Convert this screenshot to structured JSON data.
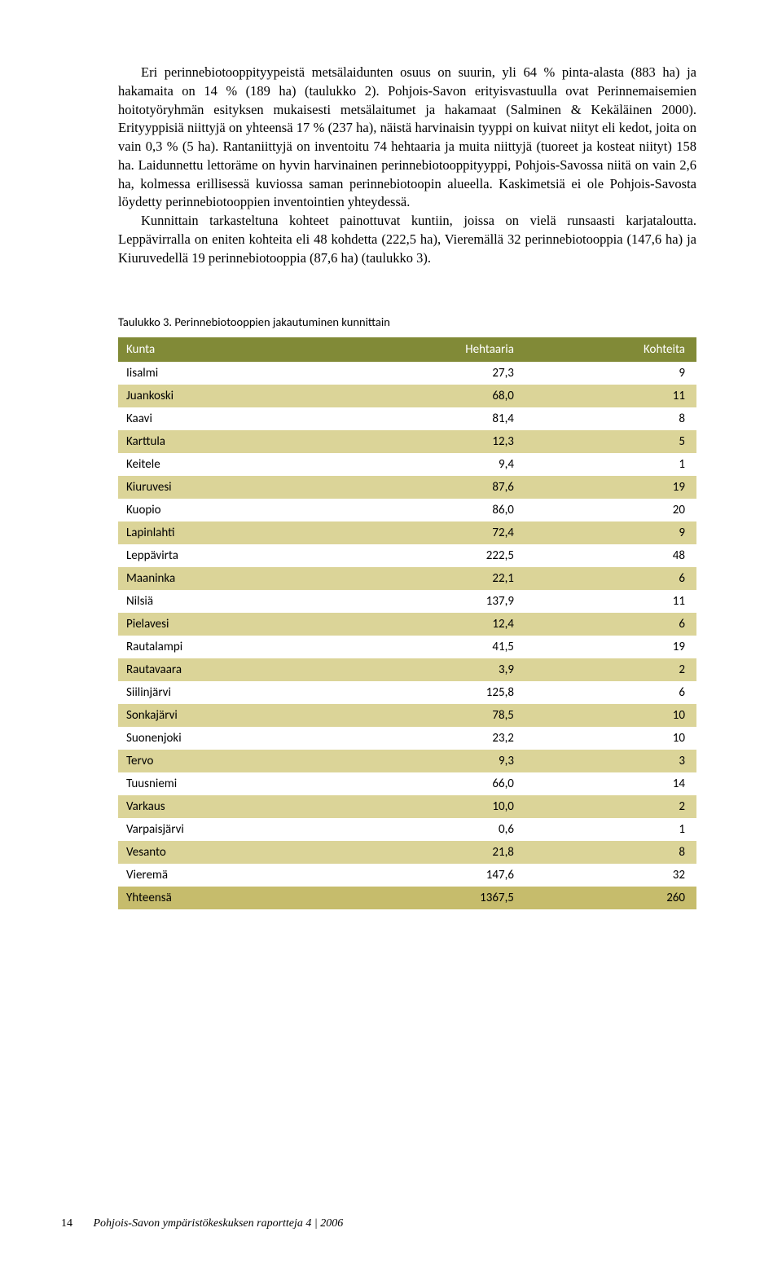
{
  "paragraphs": {
    "p1": "Eri perinnebiotooppityypeistä metsälaidunten osuus on suurin, yli 64 % pinta-alasta (883 ha) ja hakamaita on 14 % (189 ha) (taulukko 2). Pohjois-Savon erityisvastuulla ovat Perinnemaisemien hoitotyöryhmän esityksen mukaisesti metsälaitumet ja hakamaat (Salminen & Kekäläinen 2000). Erityyppisiä niittyjä on yhteensä 17 % (237 ha), näistä harvinaisin tyyppi on kuivat niityt eli kedot, joita on vain 0,3 % (5 ha). Rantaniittyjä on inventoitu 74 hehtaaria ja muita niittyjä (tuoreet ja kosteat niityt) 158 ha. Laidunnettu lettoräme on hyvin harvinainen perinnebiotooppityyppi, Pohjois-Savossa niitä on vain 2,6 ha, kolmessa erillisessä kuviossa saman perinnebiotoopin alueella. Kaskimetsiä ei ole Pohjois-Savosta löydetty perinnebiotooppien inventointien yhteydessä.",
    "p2": "Kunnittain tarkasteltuna kohteet painottuvat kuntiin, joissa on vielä runsaasti karjataloutta. Leppävirralla on eniten kohteita eli 48 kohdetta (222,5 ha), Vieremällä 32 perinnebiotooppia (147,6 ha) ja Kiuruvedellä 19 perinnebiotooppia (87,6 ha) (taulukko 3)."
  },
  "table": {
    "caption": "Taulukko 3. Perinnebiotooppien jakautuminen kunnittain",
    "headers": {
      "c0": "Kunta",
      "c1": "Hehtaaria",
      "c2": "Kohteita"
    },
    "colors": {
      "header_bg": "#818a37",
      "header_fg": "#ffffff",
      "row_odd_bg": "#ffffff",
      "row_even_bg": "#dbd498",
      "total_bg": "#c6bc6c"
    },
    "rows": [
      {
        "kunta": "Iisalmi",
        "ha": "27,3",
        "k": "9"
      },
      {
        "kunta": "Juankoski",
        "ha": "68,0",
        "k": "11"
      },
      {
        "kunta": "Kaavi",
        "ha": "81,4",
        "k": "8"
      },
      {
        "kunta": "Karttula",
        "ha": "12,3",
        "k": "5"
      },
      {
        "kunta": "Keitele",
        "ha": "9,4",
        "k": "1"
      },
      {
        "kunta": "Kiuruvesi",
        "ha": "87,6",
        "k": "19"
      },
      {
        "kunta": "Kuopio",
        "ha": "86,0",
        "k": "20"
      },
      {
        "kunta": "Lapinlahti",
        "ha": "72,4",
        "k": "9"
      },
      {
        "kunta": "Leppävirta",
        "ha": "222,5",
        "k": "48"
      },
      {
        "kunta": "Maaninka",
        "ha": "22,1",
        "k": "6"
      },
      {
        "kunta": "Nilsiä",
        "ha": "137,9",
        "k": "11"
      },
      {
        "kunta": "Pielavesi",
        "ha": "12,4",
        "k": "6"
      },
      {
        "kunta": "Rautalampi",
        "ha": "41,5",
        "k": "19"
      },
      {
        "kunta": "Rautavaara",
        "ha": "3,9",
        "k": "2"
      },
      {
        "kunta": "Siilinjärvi",
        "ha": "125,8",
        "k": "6"
      },
      {
        "kunta": "Sonkajärvi",
        "ha": "78,5",
        "k": "10"
      },
      {
        "kunta": "Suonenjoki",
        "ha": "23,2",
        "k": "10"
      },
      {
        "kunta": "Tervo",
        "ha": "9,3",
        "k": "3"
      },
      {
        "kunta": "Tuusniemi",
        "ha": "66,0",
        "k": "14"
      },
      {
        "kunta": "Varkaus",
        "ha": "10,0",
        "k": "2"
      },
      {
        "kunta": "Varpaisjärvi",
        "ha": "0,6",
        "k": "1"
      },
      {
        "kunta": "Vesanto",
        "ha": "21,8",
        "k": "8"
      },
      {
        "kunta": "Vieremä",
        "ha": "147,6",
        "k": "32"
      }
    ],
    "total": {
      "kunta": "Yhteensä",
      "ha": "1367,5",
      "k": "260"
    }
  },
  "footer": {
    "page_number": "14",
    "publication": "Pohjois-Savon ympäristökeskuksen raportteja 4 | 2006"
  }
}
